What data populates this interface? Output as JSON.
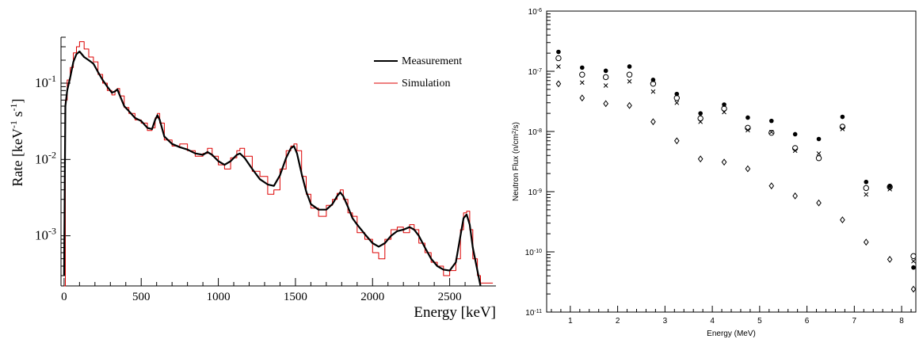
{
  "chart_data": [
    {
      "type": "line",
      "xlabel": "Energy [keV]",
      "ylabel": "Rate [keV",
      "ylabel_sup1": "-1",
      "ylabel_mid": " s",
      "ylabel_sup2": "-1",
      "ylabel_end": "]",
      "yscale": "log",
      "xlim": [
        -20,
        2800
      ],
      "ylim": [
        0.00022,
        0.4
      ],
      "x_ticks": [
        0,
        500,
        1000,
        1500,
        2000,
        2500
      ],
      "y_ticks": [
        {
          "base": "10",
          "exp": "-1",
          "value": 0.1
        },
        {
          "base": "10",
          "exp": "-2",
          "value": 0.01
        },
        {
          "base": "10",
          "exp": "-3",
          "value": 0.001
        }
      ],
      "legend": "top-right",
      "series": [
        {
          "name": "Measurement",
          "color": "#000000",
          "points": [
            [
              0,
              0.0003
            ],
            [
              8,
              0.05
            ],
            [
              20,
              0.08
            ],
            [
              40,
              0.12
            ],
            [
              60,
              0.19
            ],
            [
              80,
              0.24
            ],
            [
              100,
              0.26
            ],
            [
              130,
              0.22
            ],
            [
              160,
              0.2
            ],
            [
              190,
              0.18
            ],
            [
              220,
              0.14
            ],
            [
              250,
              0.11
            ],
            [
              280,
              0.09
            ],
            [
              310,
              0.075
            ],
            [
              330,
              0.078
            ],
            [
              345,
              0.083
            ],
            [
              360,
              0.07
            ],
            [
              390,
              0.05
            ],
            [
              420,
              0.043
            ],
            [
              460,
              0.035
            ],
            [
              500,
              0.032
            ],
            [
              540,
              0.026
            ],
            [
              570,
              0.025
            ],
            [
              590,
              0.033
            ],
            [
              605,
              0.038
            ],
            [
              620,
              0.033
            ],
            [
              650,
              0.02
            ],
            [
              700,
              0.016
            ],
            [
              750,
              0.0145
            ],
            [
              800,
              0.0135
            ],
            [
              850,
              0.012
            ],
            [
              900,
              0.0115
            ],
            [
              930,
              0.0125
            ],
            [
              960,
              0.0115
            ],
            [
              1000,
              0.0095
            ],
            [
              1040,
              0.0085
            ],
            [
              1080,
              0.0095
            ],
            [
              1120,
              0.0115
            ],
            [
              1140,
              0.012
            ],
            [
              1170,
              0.0105
            ],
            [
              1220,
              0.0075
            ],
            [
              1270,
              0.0055
            ],
            [
              1320,
              0.0047
            ],
            [
              1360,
              0.0045
            ],
            [
              1400,
              0.0062
            ],
            [
              1440,
              0.0105
            ],
            [
              1470,
              0.014
            ],
            [
              1490,
              0.015
            ],
            [
              1510,
              0.012
            ],
            [
              1540,
              0.0065
            ],
            [
              1570,
              0.0038
            ],
            [
              1600,
              0.0026
            ],
            [
              1650,
              0.0022
            ],
            [
              1700,
              0.0022
            ],
            [
              1740,
              0.0026
            ],
            [
              1770,
              0.0033
            ],
            [
              1790,
              0.0037
            ],
            [
              1810,
              0.0033
            ],
            [
              1840,
              0.0024
            ],
            [
              1870,
              0.0017
            ],
            [
              1900,
              0.0014
            ],
            [
              1950,
              0.00105
            ],
            [
              2000,
              0.0008
            ],
            [
              2040,
              0.00072
            ],
            [
              2080,
              0.0008
            ],
            [
              2120,
              0.001
            ],
            [
              2160,
              0.00115
            ],
            [
              2200,
              0.0012
            ],
            [
              2240,
              0.0013
            ],
            [
              2270,
              0.0012
            ],
            [
              2300,
              0.001
            ],
            [
              2340,
              0.0007
            ],
            [
              2380,
              0.0005
            ],
            [
              2420,
              0.0004
            ],
            [
              2460,
              0.00036
            ],
            [
              2500,
              0.00035
            ],
            [
              2540,
              0.00045
            ],
            [
              2570,
              0.001
            ],
            [
              2590,
              0.0017
            ],
            [
              2610,
              0.0019
            ],
            [
              2630,
              0.0014
            ],
            [
              2650,
              0.0007
            ],
            [
              2680,
              0.00035
            ],
            [
              2700,
              0.00022
            ]
          ]
        },
        {
          "name": "Simulation",
          "color": "#dd0000",
          "points": [
            [
              0,
              0.00022
            ],
            [
              8,
              0.06
            ],
            [
              20,
              0.11
            ],
            [
              40,
              0.16
            ],
            [
              60,
              0.25
            ],
            [
              80,
              0.3
            ],
            [
              100,
              0.35
            ],
            [
              130,
              0.28
            ],
            [
              160,
              0.22
            ],
            [
              190,
              0.19
            ],
            [
              220,
              0.13
            ],
            [
              250,
              0.1
            ],
            [
              280,
              0.08
            ],
            [
              310,
              0.07
            ],
            [
              330,
              0.08
            ],
            [
              345,
              0.085
            ],
            [
              360,
              0.068
            ],
            [
              390,
              0.048
            ],
            [
              420,
              0.04
            ],
            [
              460,
              0.033
            ],
            [
              500,
              0.03
            ],
            [
              540,
              0.024
            ],
            [
              570,
              0.026
            ],
            [
              590,
              0.035
            ],
            [
              605,
              0.04
            ],
            [
              620,
              0.03
            ],
            [
              650,
              0.018
            ],
            [
              700,
              0.015
            ],
            [
              750,
              0.016
            ],
            [
              800,
              0.013
            ],
            [
              850,
              0.011
            ],
            [
              900,
              0.012
            ],
            [
              930,
              0.014
            ],
            [
              960,
              0.011
            ],
            [
              1000,
              0.0085
            ],
            [
              1040,
              0.0075
            ],
            [
              1080,
              0.0105
            ],
            [
              1120,
              0.013
            ],
            [
              1140,
              0.014
            ],
            [
              1170,
              0.011
            ],
            [
              1220,
              0.007
            ],
            [
              1270,
              0.006
            ],
            [
              1320,
              0.0035
            ],
            [
              1360,
              0.004
            ],
            [
              1400,
              0.0075
            ],
            [
              1440,
              0.013
            ],
            [
              1470,
              0.015
            ],
            [
              1490,
              0.016
            ],
            [
              1510,
              0.013
            ],
            [
              1540,
              0.006
            ],
            [
              1570,
              0.0035
            ],
            [
              1600,
              0.0023
            ],
            [
              1650,
              0.0018
            ],
            [
              1700,
              0.0025
            ],
            [
              1740,
              0.003
            ],
            [
              1770,
              0.0036
            ],
            [
              1790,
              0.004
            ],
            [
              1810,
              0.003
            ],
            [
              1840,
              0.002
            ],
            [
              1870,
              0.0018
            ],
            [
              1900,
              0.0011
            ],
            [
              1950,
              0.0009
            ],
            [
              2000,
              0.0006
            ],
            [
              2040,
              0.0005
            ],
            [
              2080,
              0.0009
            ],
            [
              2120,
              0.0012
            ],
            [
              2160,
              0.0013
            ],
            [
              2200,
              0.0011
            ],
            [
              2240,
              0.0014
            ],
            [
              2270,
              0.0012
            ],
            [
              2300,
              0.0008
            ],
            [
              2340,
              0.0006
            ],
            [
              2380,
              0.00045
            ],
            [
              2420,
              0.0004
            ],
            [
              2460,
              0.0003
            ],
            [
              2500,
              0.00035
            ],
            [
              2540,
              0.0005
            ],
            [
              2570,
              0.0012
            ],
            [
              2590,
              0.002
            ],
            [
              2610,
              0.0021
            ],
            [
              2630,
              0.0012
            ],
            [
              2650,
              0.0005
            ],
            [
              2680,
              0.0003
            ],
            [
              2700,
              0.00024
            ],
            [
              2780,
              0.00024
            ]
          ]
        }
      ]
    },
    {
      "type": "scatter",
      "xlabel": "Energy (MeV)",
      "ylabel": "Neutron Flux (n/cm",
      "ylabel_sup": "2",
      "ylabel_end": "/s)",
      "yscale": "log",
      "xlim": [
        0.5,
        8.3
      ],
      "ylim": [
        1e-11,
        1e-06
      ],
      "x_ticks": [
        1,
        2,
        3,
        4,
        5,
        6,
        7,
        8
      ],
      "y_ticks": [
        {
          "base": "10",
          "exp": "-6",
          "value": 1e-06
        },
        {
          "base": "10",
          "exp": "-7",
          "value": 1e-07
        },
        {
          "base": "10",
          "exp": "-8",
          "value": 1e-08
        },
        {
          "base": "10",
          "exp": "-9",
          "value": 1e-09
        },
        {
          "base": "10",
          "exp": "-10",
          "value": 1e-10
        },
        {
          "base": "10",
          "exp": "-11",
          "value": 1e-11
        }
      ],
      "x": [
        0.75,
        1.25,
        1.75,
        2.25,
        2.75,
        3.25,
        3.75,
        4.25,
        4.75,
        5.25,
        5.75,
        6.25,
        6.75,
        7.25,
        7.75,
        8.25
      ],
      "series": [
        {
          "marker": "filled-circle",
          "values": [
            2.1e-07,
            1.15e-07,
            1.02e-07,
            1.2e-07,
            7.2e-08,
            4.2e-08,
            2e-08,
            2.8e-08,
            1.7e-08,
            1.5e-08,
            9e-09,
            7.5e-09,
            1.75e-08,
            1.45e-09,
            1.25e-09,
            5.5e-11
          ]
        },
        {
          "marker": "open-circle",
          "values": [
            1.65e-07,
            8.8e-08,
            8e-08,
            8.8e-08,
            6.2e-08,
            3.6e-08,
            1.65e-08,
            2.4e-08,
            1.15e-08,
            9.5e-09,
            5.3e-09,
            3.6e-09,
            1.2e-08,
            1.15e-09,
            1.2e-09,
            8.5e-11
          ]
        },
        {
          "marker": "cross",
          "values": [
            1.2e-07,
            6.5e-08,
            5.8e-08,
            6.8e-08,
            4.6e-08,
            3e-08,
            1.45e-08,
            2.1e-08,
            1.05e-08,
            9.8e-09,
            4.8e-09,
            4.3e-09,
            1.1e-08,
            9e-10,
            1.1e-09,
            7e-11
          ]
        },
        {
          "marker": "open-diamond",
          "values": [
            6.2e-08,
            3.6e-08,
            2.9e-08,
            2.7e-08,
            1.45e-08,
            7e-09,
            3.5e-09,
            3.1e-09,
            2.4e-09,
            1.25e-09,
            8.5e-10,
            6.5e-10,
            3.4e-10,
            1.45e-10,
            7.5e-11,
            2.4e-11
          ]
        }
      ]
    }
  ]
}
